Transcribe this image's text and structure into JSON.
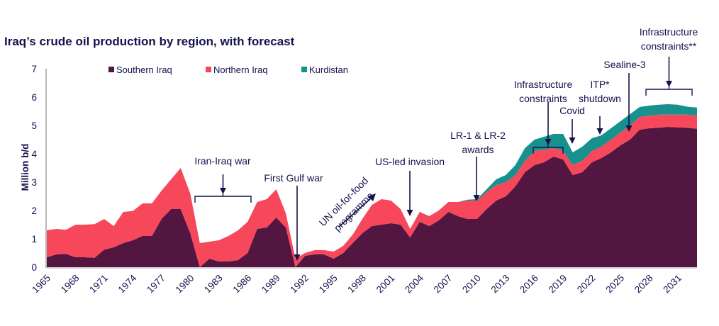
{
  "chart_data": {
    "type": "area",
    "stacked": true,
    "title": "Iraq’s crude oil production by region, with forecast",
    "xlabel": "",
    "ylabel": "Million b/d",
    "ylim": [
      0,
      7
    ],
    "xlim": [
      1965,
      2033
    ],
    "yticks": [
      0,
      1,
      2,
      3,
      4,
      5,
      6,
      7
    ],
    "xticks": [
      1965,
      1968,
      1971,
      1974,
      1977,
      1980,
      1983,
      1986,
      1989,
      1992,
      1995,
      1998,
      2001,
      2004,
      2007,
      2010,
      2013,
      2016,
      2019,
      2022,
      2025,
      2028,
      2031
    ],
    "grid": false,
    "legend_position": "top-center",
    "x": [
      1965,
      1966,
      1967,
      1968,
      1969,
      1970,
      1971,
      1972,
      1973,
      1974,
      1975,
      1976,
      1977,
      1978,
      1979,
      1980,
      1981,
      1982,
      1983,
      1984,
      1985,
      1986,
      1987,
      1988,
      1989,
      1990,
      1991,
      1992,
      1993,
      1994,
      1995,
      1996,
      1997,
      1998,
      1999,
      2000,
      2001,
      2002,
      2003,
      2004,
      2005,
      2006,
      2007,
      2008,
      2009,
      2010,
      2011,
      2012,
      2013,
      2014,
      2015,
      2016,
      2017,
      2018,
      2019,
      2020,
      2021,
      2022,
      2023,
      2024,
      2025,
      2026,
      2027,
      2028,
      2029,
      2030,
      2031,
      2032,
      2033
    ],
    "series": [
      {
        "name": "Southern Iraq",
        "color": "#531640",
        "values": [
          0.35,
          0.45,
          0.47,
          0.35,
          0.35,
          0.33,
          0.62,
          0.7,
          0.85,
          0.95,
          1.1,
          1.1,
          1.7,
          2.05,
          2.05,
          1.2,
          0.0,
          0.3,
          0.2,
          0.2,
          0.25,
          0.5,
          1.35,
          1.4,
          1.75,
          1.4,
          0.0,
          0.4,
          0.45,
          0.45,
          0.3,
          0.5,
          0.85,
          1.2,
          1.45,
          1.5,
          1.55,
          1.5,
          1.05,
          1.6,
          1.45,
          1.65,
          1.95,
          1.8,
          1.7,
          1.7,
          2.05,
          2.35,
          2.5,
          2.85,
          3.35,
          3.6,
          3.7,
          3.9,
          3.8,
          3.25,
          3.35,
          3.7,
          3.85,
          4.05,
          4.3,
          4.5,
          4.85,
          4.9,
          4.92,
          4.95,
          4.93,
          4.92,
          4.88
        ]
      },
      {
        "name": "Northern Iraq",
        "color": "#f7475a",
        "values": [
          0.95,
          0.9,
          0.85,
          1.15,
          1.15,
          1.19,
          1.08,
          0.75,
          1.1,
          1.03,
          1.15,
          1.15,
          1.0,
          1.05,
          1.45,
          1.4,
          0.85,
          0.6,
          0.75,
          0.9,
          1.05,
          1.1,
          0.95,
          1.0,
          1.0,
          0.5,
          0.3,
          0.1,
          0.15,
          0.15,
          0.25,
          0.25,
          0.3,
          0.5,
          0.75,
          0.9,
          0.8,
          0.55,
          0.3,
          0.35,
          0.35,
          0.35,
          0.35,
          0.5,
          0.65,
          0.65,
          0.6,
          0.55,
          0.5,
          0.4,
          0.4,
          0.5,
          0.45,
          0.3,
          0.3,
          0.35,
          0.4,
          0.4,
          0.4,
          0.45,
          0.45,
          0.5,
          0.45,
          0.45,
          0.46,
          0.43,
          0.45,
          0.46,
          0.47
        ]
      },
      {
        "name": "Kurdistan",
        "color": "#16918d",
        "values": [
          0,
          0,
          0,
          0,
          0,
          0,
          0,
          0,
          0,
          0,
          0,
          0,
          0,
          0,
          0,
          0,
          0,
          0,
          0,
          0,
          0,
          0,
          0,
          0,
          0,
          0,
          0,
          0,
          0,
          0,
          0,
          0,
          0,
          0,
          0,
          0,
          0,
          0,
          0,
          0,
          0,
          0,
          0,
          0,
          0.03,
          0.05,
          0.1,
          0.2,
          0.25,
          0.35,
          0.45,
          0.4,
          0.45,
          0.5,
          0.6,
          0.45,
          0.5,
          0.45,
          0.4,
          0.4,
          0.4,
          0.4,
          0.35,
          0.35,
          0.35,
          0.37,
          0.35,
          0.28,
          0.28
        ]
      }
    ],
    "annotations": [
      {
        "text": [
          "Iran-Iraq war"
        ],
        "kind": "bracket",
        "from": 1981,
        "to": 1986.5
      },
      {
        "text": [
          "First Gulf war"
        ],
        "kind": "arrow",
        "year": 1991
      },
      {
        "text": [
          "UN oil-for-food",
          "programme"
        ],
        "kind": "diagonal-arrow",
        "from": 1995,
        "to": 1999
      },
      {
        "text": [
          "US-led invasion"
        ],
        "kind": "arrow",
        "year": 2003
      },
      {
        "text": [
          "LR-1 & LR-2",
          "awards"
        ],
        "kind": "arrow",
        "year": 2009.7
      },
      {
        "text": [
          "Infrastructure",
          "constraints"
        ],
        "kind": "bracket",
        "from": 2016,
        "to": 2019
      },
      {
        "text": [
          "Covid"
        ],
        "kind": "arrow",
        "year": 2020.3
      },
      {
        "text": [
          "ITP*",
          "shutdown"
        ],
        "kind": "arrow",
        "year": 2023
      },
      {
        "text": [
          "Sealine-3"
        ],
        "kind": "arrow",
        "year": 2025.3
      },
      {
        "text": [
          "Infrastructure",
          "constraints**"
        ],
        "kind": "bracket",
        "from": 2027.5,
        "to": 2032.5
      }
    ]
  }
}
